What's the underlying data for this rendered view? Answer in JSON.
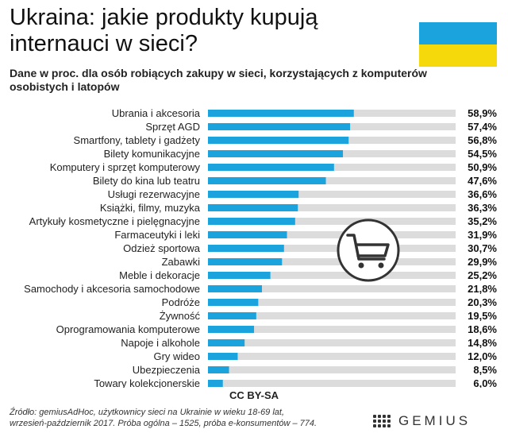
{
  "header": {
    "title": "Ukraina: jakie produkty kupują internauci w sieci?",
    "subtitle": "Dane w proc. dla osób robiących zakupy w sieci, korzystających z komputerów osobistych i latopów"
  },
  "colors": {
    "bar": "#1aa3dc",
    "track": "#dcdcdc",
    "flag_blue": "#1aa3dc",
    "flag_yellow": "#f5d90a"
  },
  "icons": {
    "center": "shopping-cart-icon"
  },
  "chart_data": {
    "type": "bar",
    "orientation": "horizontal",
    "categories": [
      "Ubrania i akcesoria",
      "Sprzęt AGD",
      "Smartfony, tablety i gadżety",
      "Bilety komunikacyjne",
      "Komputery i sprzęt komputerowy",
      "Bilety do kina lub teatru",
      "Usługi rezerwacyjne",
      "Książki, filmy, muzyka",
      "Artykuły kosmetyczne i pielęgnacyjne",
      "Farmaceutyki i leki",
      "Odzież sportowa",
      "Zabawki",
      "Meble i dekoracje",
      "Samochody i akcesoria samochodowe",
      "Podróże",
      "Żywność",
      "Oprogramowania komputerowe",
      "Napoje i alkohole",
      "Gry wideo",
      "Ubezpieczenia",
      "Towary kolekcjonerskie"
    ],
    "values": [
      58.9,
      57.4,
      56.8,
      54.5,
      50.9,
      47.6,
      36.6,
      36.3,
      35.2,
      31.9,
      30.7,
      29.9,
      25.2,
      21.8,
      20.3,
      19.5,
      18.6,
      14.8,
      12.0,
      8.5,
      6.0
    ],
    "value_labels": [
      "58,9%",
      "57,4%",
      "56,8%",
      "54,5%",
      "50,9%",
      "47,6%",
      "36,6%",
      "36,3%",
      "35,2%",
      "31,9%",
      "30,7%",
      "29,9%",
      "25,2%",
      "21,8%",
      "20,3%",
      "19,5%",
      "18,6%",
      "14,8%",
      "12,0%",
      "8,5%",
      "6,0%"
    ],
    "xlim": [
      0,
      100
    ],
    "grid": false,
    "legend": "none"
  },
  "footer": {
    "license": "CC BY-SA",
    "source_line1": "Źródło: gemiusAdHoc, użytkownicy sieci na Ukrainie w wieku 18-69 lat,",
    "source_line2": "wrzesień-październik 2017. Próba ogólna – 1525, próba e-konsumentów – 774.",
    "logo_text": "GEMIUS"
  }
}
